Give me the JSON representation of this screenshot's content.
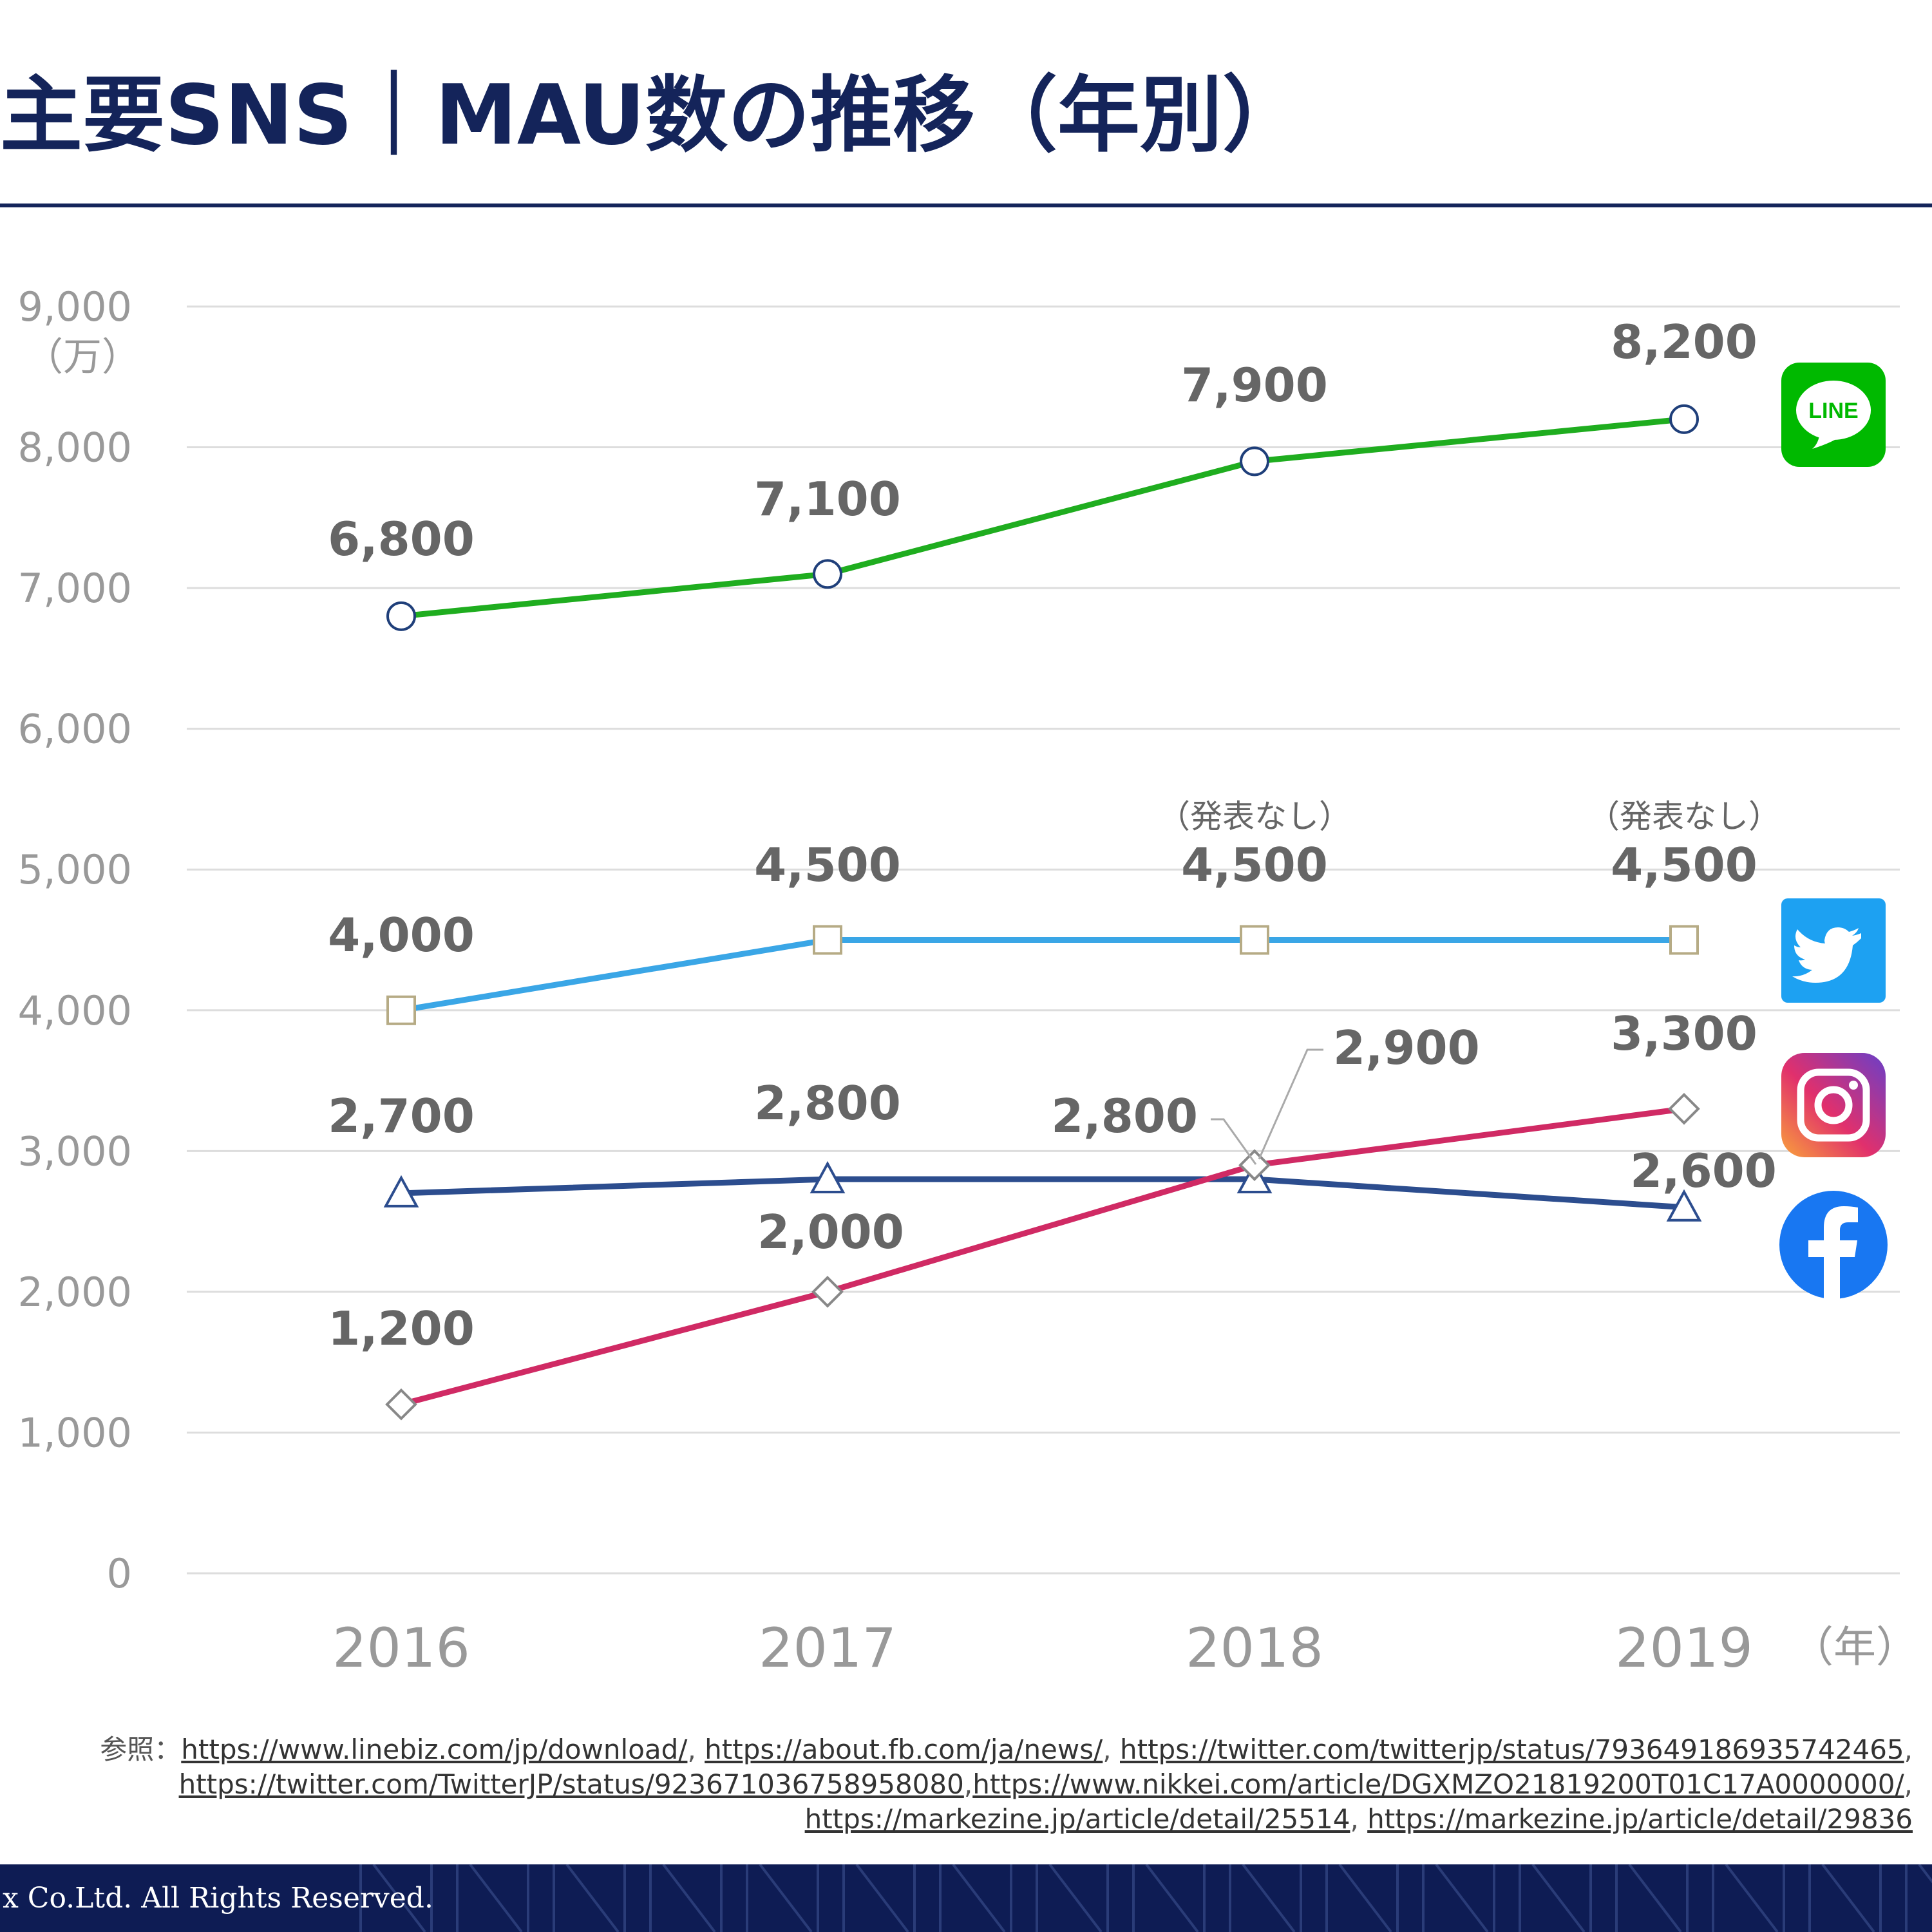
{
  "header": {
    "title": "主要SNS｜MAU数の推移（年別）"
  },
  "chart_data": {
    "type": "line",
    "y_unit": "（万）",
    "x_unit": "（年）",
    "ylim": [
      0,
      9000
    ],
    "y_ticks": [
      "0",
      "1,000",
      "2,000",
      "3,000",
      "4,000",
      "5,000",
      "6,000",
      "7,000",
      "8,000",
      "9,000"
    ],
    "categories": [
      "2016",
      "2017",
      "2018",
      "2019"
    ],
    "grid": true,
    "series": [
      {
        "key": "line",
        "values": [
          6800,
          7100,
          7900,
          8200
        ],
        "labels": [
          "6,800",
          "7,100",
          "7,900",
          "8,200"
        ],
        "color": "#1fad1f",
        "marker": "circle",
        "marker_stroke": "#1f3f7a"
      },
      {
        "key": "twitter",
        "values": [
          4000,
          4500,
          4500,
          4500
        ],
        "labels": [
          "4,000",
          "4,500",
          "4,500",
          "4,500"
        ],
        "color": "#3aa6e6",
        "marker": "square",
        "marker_stroke": "#b6ab85",
        "notes": [
          "",
          "",
          "（発表なし）",
          "（発表なし）"
        ]
      },
      {
        "key": "facebook",
        "values": [
          2700,
          2800,
          2800,
          2600
        ],
        "labels": [
          "2,700",
          "2,800",
          "2,800",
          "2,600"
        ],
        "color": "#2c4d8e",
        "marker": "triangle",
        "marker_stroke": "#2c4d8e"
      },
      {
        "key": "instagram",
        "values": [
          1200,
          2000,
          2900,
          3300
        ],
        "labels": [
          "1,200",
          "2,000",
          "2,900",
          "3,300"
        ],
        "color": "#d02a64",
        "marker": "diamond",
        "marker_stroke": "#888888"
      }
    ],
    "colors": {
      "axis_text": "#999999",
      "data_label": "#666666",
      "grid": "#dddddd"
    }
  },
  "brand_icons": [
    {
      "name": "line-icon",
      "text": "LINE",
      "color": "#00b900"
    },
    {
      "name": "twitter-icon",
      "color": "#1da1f2"
    },
    {
      "name": "instagram-icon",
      "color": "#d6249f"
    },
    {
      "name": "facebook-icon",
      "color": "#1877f2"
    }
  ],
  "sources": {
    "prefix": "参照：",
    "links": [
      "https://www.linebiz.com/jp/download/",
      "https://about.fb.com/ja/news/",
      "https://twitter.com/twitterjp/status/793649186935742465",
      "https://twitter.com/TwitterJP/status/923671036758958080",
      "https://www.nikkei.com/article/DGXMZO21819200T01C17A0000000/",
      "https://markezine.jp/article/detail/25514",
      "https://markezine.jp/article/detail/29836"
    ]
  },
  "footer": {
    "copyright": "x Co.Ltd. All Rights Reserved.",
    "color": "#0e1c54"
  }
}
